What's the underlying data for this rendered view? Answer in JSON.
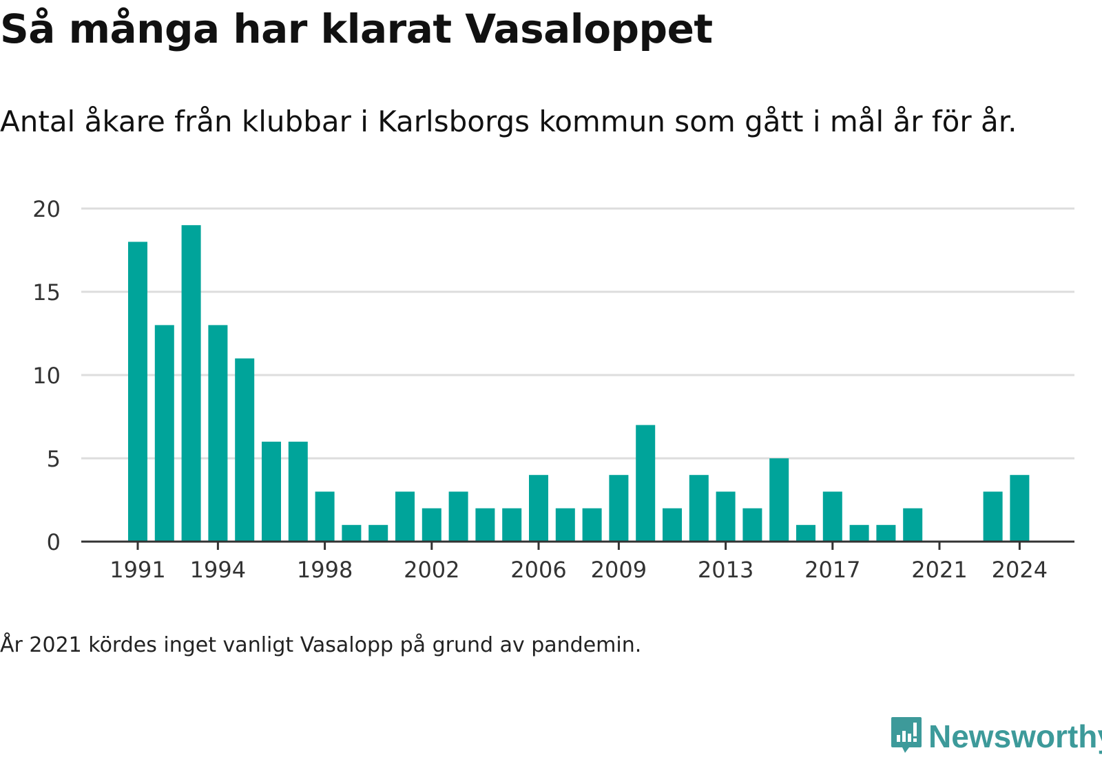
{
  "title": "Så många har klarat Vasaloppet",
  "subtitle": "Antal åkare från klubbar i Karlsborgs kommun som gått i mål år för år.",
  "note": "År 2021 kördes inget vanligt Vasalopp på grund av pandemin.",
  "brand": {
    "name": "Newsworthy",
    "icon": "newsworthy-logo-icon",
    "color": "#3d9a9a"
  },
  "colors": {
    "bar": "#00a49a",
    "grid": "#dddddd",
    "axis": "#333333",
    "tick_text": "#333333"
  },
  "chart_data": {
    "type": "bar",
    "categories": [
      1991,
      1992,
      1993,
      1994,
      1995,
      1996,
      1997,
      1998,
      1999,
      2000,
      2001,
      2002,
      2003,
      2004,
      2005,
      2006,
      2007,
      2008,
      2009,
      2010,
      2011,
      2012,
      2013,
      2014,
      2015,
      2016,
      2017,
      2018,
      2019,
      2020,
      2021,
      2022,
      2023,
      2024
    ],
    "values": [
      18,
      13,
      19,
      13,
      11,
      6,
      6,
      3,
      1,
      1,
      3,
      2,
      3,
      2,
      2,
      4,
      2,
      2,
      4,
      7,
      2,
      4,
      3,
      2,
      5,
      1,
      3,
      1,
      1,
      2,
      0,
      0,
      3,
      4
    ],
    "x_tick_labels": [
      "1991",
      "1994",
      "1998",
      "2002",
      "2006",
      "2009",
      "2013",
      "2017",
      "2021",
      "2024"
    ],
    "y_ticks": [
      0,
      5,
      10,
      15,
      20
    ],
    "ylim": [
      0,
      20
    ],
    "grid": true
  }
}
